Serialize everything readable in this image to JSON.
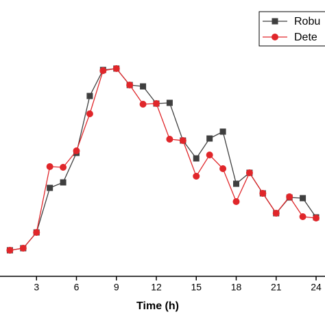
{
  "chart_data": {
    "type": "line",
    "xlabel": "Time (h)",
    "x": [
      1,
      2,
      3,
      4,
      5,
      6,
      7,
      8,
      9,
      10,
      11,
      12,
      13,
      14,
      15,
      16,
      17,
      18,
      19,
      20,
      21,
      22,
      23,
      24
    ],
    "xlim": [
      0,
      24
    ],
    "xticks": [
      3,
      6,
      9,
      12,
      15,
      18,
      21,
      24
    ],
    "ylim": [
      0,
      100
    ],
    "legend": "upper right",
    "series": [
      {
        "name": "Robu",
        "color": "#3f3f3f",
        "marker": "square",
        "values": [
          9.5,
          10.25,
          16,
          32.25,
          34.25,
          45,
          65.75,
          75.25,
          75.75,
          69.75,
          69.25,
          63,
          63.25,
          49.5,
          43,
          50.25,
          52.75,
          33.75,
          37.75,
          30.25,
          23,
          28.75,
          28.5,
          21.5
        ]
      },
      {
        "name": "Dete",
        "color": "#e0262a",
        "marker": "circle",
        "values": [
          9.5,
          10.25,
          16,
          40,
          39.75,
          45.75,
          59.25,
          75,
          75.75,
          69.75,
          62.75,
          63,
          50,
          49.5,
          36.5,
          44.25,
          39.25,
          27.25,
          37.75,
          30.25,
          23,
          29,
          21.75,
          21.25
        ]
      }
    ]
  }
}
